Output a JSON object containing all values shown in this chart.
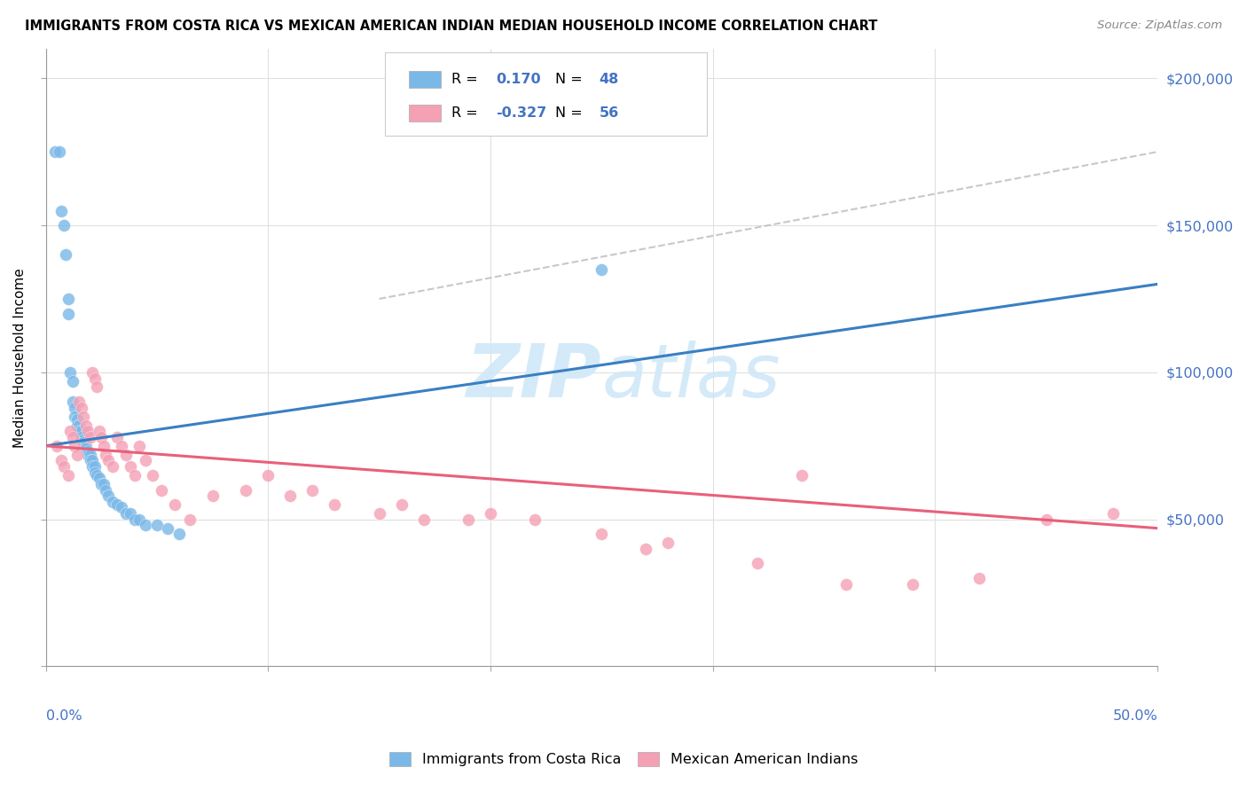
{
  "title": "IMMIGRANTS FROM COSTA RICA VS MEXICAN AMERICAN INDIAN MEDIAN HOUSEHOLD INCOME CORRELATION CHART",
  "source": "Source: ZipAtlas.com",
  "ylabel": "Median Household Income",
  "xlim": [
    0.0,
    0.5
  ],
  "ylim": [
    0,
    210000
  ],
  "blue_color": "#7ab8e8",
  "pink_color": "#f4a0b5",
  "blue_line_color": "#3a7fc1",
  "pink_line_color": "#e8607a",
  "dashed_line_color": "#bbbbbb",
  "watermark_color": "#d0e8f8",
  "blue_R": "0.170",
  "blue_N": "48",
  "pink_R": "-0.327",
  "pink_N": "56",
  "blue_scatter_x": [
    0.004,
    0.006,
    0.007,
    0.008,
    0.009,
    0.01,
    0.01,
    0.011,
    0.012,
    0.012,
    0.013,
    0.013,
    0.014,
    0.014,
    0.015,
    0.015,
    0.016,
    0.016,
    0.017,
    0.017,
    0.018,
    0.018,
    0.019,
    0.019,
    0.02,
    0.02,
    0.021,
    0.021,
    0.022,
    0.022,
    0.023,
    0.024,
    0.025,
    0.026,
    0.027,
    0.028,
    0.03,
    0.032,
    0.034,
    0.036,
    0.038,
    0.04,
    0.042,
    0.045,
    0.05,
    0.055,
    0.06,
    0.25
  ],
  "blue_scatter_y": [
    175000,
    175000,
    155000,
    150000,
    140000,
    125000,
    120000,
    100000,
    97000,
    90000,
    88000,
    85000,
    84000,
    82000,
    82000,
    80000,
    80000,
    78000,
    77000,
    76000,
    75000,
    74000,
    73000,
    72000,
    72000,
    70000,
    70000,
    68000,
    68000,
    66000,
    65000,
    64000,
    62000,
    62000,
    60000,
    58000,
    56000,
    55000,
    54000,
    52000,
    52000,
    50000,
    50000,
    48000,
    48000,
    47000,
    45000,
    135000
  ],
  "pink_scatter_x": [
    0.005,
    0.007,
    0.008,
    0.01,
    0.011,
    0.012,
    0.013,
    0.014,
    0.015,
    0.016,
    0.017,
    0.018,
    0.019,
    0.02,
    0.021,
    0.022,
    0.023,
    0.024,
    0.025,
    0.026,
    0.027,
    0.028,
    0.03,
    0.032,
    0.034,
    0.036,
    0.038,
    0.04,
    0.042,
    0.045,
    0.048,
    0.052,
    0.058,
    0.065,
    0.075,
    0.09,
    0.11,
    0.13,
    0.15,
    0.17,
    0.2,
    0.22,
    0.25,
    0.28,
    0.32,
    0.36,
    0.39,
    0.42,
    0.45,
    0.48,
    0.1,
    0.12,
    0.16,
    0.19,
    0.34,
    0.27
  ],
  "pink_scatter_y": [
    75000,
    70000,
    68000,
    65000,
    80000,
    78000,
    75000,
    72000,
    90000,
    88000,
    85000,
    82000,
    80000,
    78000,
    100000,
    98000,
    95000,
    80000,
    78000,
    75000,
    72000,
    70000,
    68000,
    78000,
    75000,
    72000,
    68000,
    65000,
    75000,
    70000,
    65000,
    60000,
    55000,
    50000,
    58000,
    60000,
    58000,
    55000,
    52000,
    50000,
    52000,
    50000,
    45000,
    42000,
    35000,
    28000,
    28000,
    30000,
    50000,
    52000,
    65000,
    60000,
    55000,
    50000,
    65000,
    40000
  ],
  "blue_line_x": [
    0.0,
    0.5
  ],
  "blue_line_y": [
    75000,
    130000
  ],
  "pink_line_x": [
    0.0,
    0.5
  ],
  "pink_line_y": [
    75000,
    47000
  ],
  "dashed_line_x": [
    0.15,
    0.5
  ],
  "dashed_line_y": [
    125000,
    175000
  ]
}
